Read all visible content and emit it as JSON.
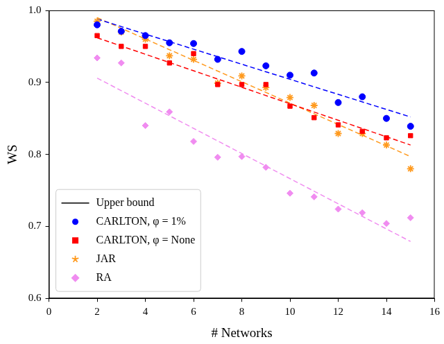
{
  "chart_data": {
    "type": "scatter",
    "x_label": "# Networks",
    "y_label": "WS",
    "xlim": [
      0,
      16
    ],
    "xticks": [
      0,
      2,
      4,
      6,
      8,
      10,
      12,
      14,
      16
    ],
    "ylim": [
      0.6,
      1
    ],
    "yticks": [
      0.6,
      0.7,
      0.8,
      0.9,
      {
        "value": 1,
        "label": "1.0"
      }
    ],
    "grid": false,
    "legend": "lower left",
    "series": [
      {
        "name": "Upper bound",
        "type": "line",
        "color": "#000000",
        "line_style": "solid",
        "x": [
          1,
          16
        ],
        "values": [
          1,
          1
        ]
      },
      {
        "name": "CARLTON, φ = 1%",
        "type": "scatter",
        "color": "#0000ff",
        "marker": "circle",
        "x": [
          2,
          3,
          4,
          5,
          6,
          7,
          8,
          9,
          10,
          11,
          12,
          13,
          14,
          15
        ],
        "values": [
          0.98,
          0.971,
          0.965,
          0.955,
          0.954,
          0.932,
          0.943,
          0.923,
          0.91,
          0.913,
          0.872,
          0.88,
          0.85,
          0.839
        ],
        "trend": {
          "x": [
            2,
            15
          ],
          "values": [
            0.988,
            0.852
          ],
          "line_style": "dashed"
        }
      },
      {
        "name": "CARLTON, φ = None",
        "type": "scatter",
        "color": "#ff0000",
        "marker": "square",
        "x": [
          2,
          3,
          4,
          5,
          6,
          7,
          8,
          9,
          10,
          11,
          12,
          13,
          14,
          15
        ],
        "values": [
          0.965,
          0.95,
          0.95,
          0.927,
          0.94,
          0.897,
          0.897,
          0.897,
          0.867,
          0.851,
          0.841,
          0.832,
          0.823,
          0.826
        ],
        "trend": {
          "x": [
            2,
            15
          ],
          "values": [
            0.962,
            0.813
          ],
          "line_style": "dashed"
        }
      },
      {
        "name": "JAR",
        "type": "scatter",
        "color": "#ff9a1e",
        "marker": "star",
        "x": [
          2,
          3,
          4,
          5,
          6,
          7,
          8,
          9,
          10,
          11,
          12,
          13,
          14,
          15
        ],
        "values": [
          0.985,
          0.97,
          0.96,
          0.937,
          0.932,
          0.899,
          0.909,
          0.893,
          0.879,
          0.868,
          0.829,
          0.829,
          0.813,
          0.78
        ],
        "trend": {
          "x": [
            2,
            15
          ],
          "values": [
            0.99,
            0.797
          ],
          "line_style": "dashed"
        }
      },
      {
        "name": "RA",
        "type": "scatter",
        "color": "#f08cf0",
        "marker": "diamond",
        "x": [
          2,
          3,
          4,
          5,
          6,
          7,
          8,
          9,
          10,
          11,
          12,
          13,
          14,
          15
        ],
        "values": [
          0.934,
          0.927,
          0.84,
          0.859,
          0.818,
          0.796,
          0.797,
          0.782,
          0.746,
          0.741,
          0.724,
          0.719,
          0.704,
          0.712
        ],
        "trend": {
          "x": [
            2,
            15
          ],
          "values": [
            0.906,
            0.679
          ],
          "line_style": "dashed"
        }
      }
    ]
  }
}
